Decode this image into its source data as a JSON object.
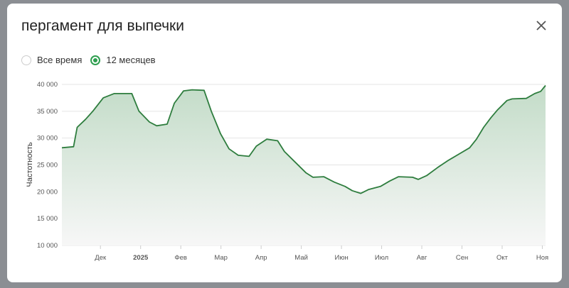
{
  "title": "пергамент для выпечки",
  "range_options": [
    {
      "label": "Все время",
      "selected": false
    },
    {
      "label": "12 месяцев",
      "selected": true
    }
  ],
  "colors": {
    "line": "#2e7d3e",
    "fill": "#c3dcc8",
    "accent": "#2e9e4f"
  },
  "chart_data": {
    "type": "area",
    "ylabel": "Частотность",
    "xlabel": "",
    "ylim": [
      10000,
      40000
    ],
    "yticks": [
      {
        "v": 10000,
        "label": "10 000"
      },
      {
        "v": 15000,
        "label": "15 000"
      },
      {
        "v": 20000,
        "label": "20 000"
      },
      {
        "v": 25000,
        "label": "25 000"
      },
      {
        "v": 30000,
        "label": "30 000"
      },
      {
        "v": 35000,
        "label": "35 000"
      },
      {
        "v": 40000,
        "label": "40 000"
      }
    ],
    "x_unit": "months since Dec 2024",
    "xlim": [
      -0.96,
      11.08
    ],
    "xticks": [
      {
        "v": 0,
        "label": "Дек"
      },
      {
        "v": 1,
        "label": "2025",
        "bold": true
      },
      {
        "v": 2,
        "label": "Фев"
      },
      {
        "v": 3,
        "label": "Мар"
      },
      {
        "v": 4,
        "label": "Апр"
      },
      {
        "v": 5,
        "label": "Май"
      },
      {
        "v": 6,
        "label": "Июн"
      },
      {
        "v": 7,
        "label": "Июл"
      },
      {
        "v": 8,
        "label": "Авг"
      },
      {
        "v": 9,
        "label": "Сен"
      },
      {
        "v": 10,
        "label": "Окт"
      },
      {
        "v": 11,
        "label": "Ноя"
      }
    ],
    "x": [
      -0.96,
      -0.67,
      -0.58,
      -0.37,
      -0.19,
      0.07,
      0.34,
      0.78,
      0.96,
      1.22,
      1.4,
      1.66,
      1.84,
      2.07,
      2.28,
      2.58,
      2.76,
      2.99,
      3.2,
      3.43,
      3.7,
      3.88,
      4.14,
      4.41,
      4.58,
      4.85,
      5.12,
      5.29,
      5.56,
      5.82,
      6.09,
      6.27,
      6.48,
      6.67,
      6.97,
      7.2,
      7.42,
      7.77,
      7.91,
      8.12,
      8.39,
      8.65,
      8.92,
      9.19,
      9.36,
      9.54,
      9.72,
      9.89,
      10.12,
      10.25,
      10.6,
      10.81,
      10.96,
      11.08
    ],
    "values": [
      28200,
      28400,
      32000,
      33500,
      35000,
      37500,
      38300,
      38300,
      35000,
      33000,
      32300,
      32600,
      36500,
      38800,
      39000,
      38900,
      35000,
      30800,
      28000,
      26800,
      26600,
      28500,
      29800,
      29500,
      27500,
      25500,
      23500,
      22700,
      22800,
      21800,
      21000,
      20200,
      19700,
      20400,
      21000,
      22000,
      22800,
      22700,
      22300,
      23000,
      24500,
      25800,
      27000,
      28200,
      29800,
      32000,
      33800,
      35300,
      37000,
      37300,
      37400,
      38300,
      38700,
      39800
    ]
  }
}
